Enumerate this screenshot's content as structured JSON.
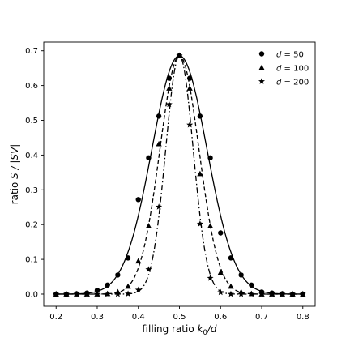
{
  "chart_data": {
    "type": "scatter",
    "xlabel": {
      "prefix": "filling ratio ",
      "var": "k",
      "sub": "0",
      "suffix": "/d"
    },
    "ylabel": {
      "prefix": "ratio ",
      "var": "S",
      "suffix": " / |SV|"
    },
    "xlim": [
      0.17,
      0.83
    ],
    "ylim": [
      -0.035,
      0.725
    ],
    "xticks": [
      0.2,
      0.3,
      0.4,
      0.5,
      0.6,
      0.7,
      0.8
    ],
    "xtick_labels": [
      "0.2",
      "0.3",
      "0.4",
      "0.5",
      "0.6",
      "0.7",
      "0.8"
    ],
    "yticks": [
      0.0,
      0.1,
      0.2,
      0.3,
      0.4,
      0.5,
      0.6,
      0.7
    ],
    "ytick_labels": [
      "0.0",
      "0.1",
      "0.2",
      "0.3",
      "0.4",
      "0.5",
      "0.6",
      "0.7"
    ],
    "grid": false,
    "legend_position": "top-right",
    "x": [
      0.2,
      0.225,
      0.25,
      0.275,
      0.3,
      0.325,
      0.35,
      0.375,
      0.4,
      0.425,
      0.45,
      0.475,
      0.5,
      0.525,
      0.55,
      0.575,
      0.6,
      0.625,
      0.65,
      0.675,
      0.7,
      0.725,
      0.75,
      0.775,
      0.8
    ],
    "series": [
      {
        "name": "d = 50",
        "legend": {
          "var": "d",
          "eq": " = ",
          "val": "50"
        },
        "marker": "circle",
        "line": "solid",
        "values": [
          0.0,
          0.0,
          0.001,
          0.003,
          0.011,
          0.026,
          0.055,
          0.104,
          0.272,
          0.392,
          0.512,
          0.621,
          0.686,
          0.621,
          0.512,
          0.392,
          0.176,
          0.104,
          0.055,
          0.026,
          0.006,
          0.003,
          0.001,
          0.0,
          0.0
        ]
      },
      {
        "name": "d = 100",
        "legend": {
          "var": "d",
          "eq": " = ",
          "val": "100"
        },
        "marker": "triangle",
        "line": "dashed",
        "values": [
          0.0,
          0.0,
          0.0,
          0.0,
          0.0,
          0.001,
          0.006,
          0.022,
          0.095,
          0.196,
          0.432,
          0.592,
          0.686,
          0.592,
          0.346,
          0.196,
          0.062,
          0.022,
          0.006,
          0.001,
          0.0,
          0.0,
          0.0,
          0.0,
          0.0
        ]
      },
      {
        "name": "d = 200",
        "legend": {
          "var": "d",
          "eq": " = ",
          "val": "200"
        },
        "marker": "star",
        "line": "dashdot",
        "values": [
          0.0,
          0.0,
          0.0,
          0.0,
          0.0,
          0.0,
          0.0,
          0.001,
          0.012,
          0.071,
          0.251,
          0.546,
          0.686,
          0.487,
          0.202,
          0.046,
          0.005,
          0.0,
          0.0,
          0.0,
          0.0,
          0.0,
          0.0,
          0.0,
          0.0
        ]
      }
    ]
  }
}
